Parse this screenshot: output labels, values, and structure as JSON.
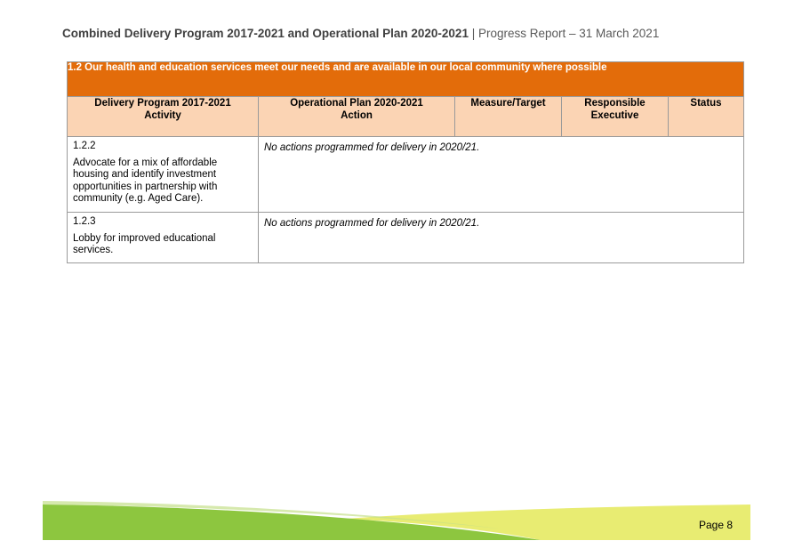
{
  "header": {
    "title_bold": "Combined Delivery Program 2017-2021 and Operational Plan 2020-2021",
    "separator": " | ",
    "subtitle": "Progress Report – 31 March 2021"
  },
  "table": {
    "section_heading": "1.2 Our health and education services meet our needs and are available in our local community where possible",
    "columns": {
      "activity_line1": "Delivery Program 2017-2021",
      "activity_line2": "Activity",
      "action_line1": "Operational Plan 2020-2021",
      "action_line2": "Action",
      "measure": "Measure/Target",
      "responsible_line1": "Responsible",
      "responsible_line2": "Executive",
      "status": "Status"
    },
    "rows": [
      {
        "code": "1.2.2",
        "activity": "Advocate for a mix of affordable housing and identify investment opportunities in partnership with community (e.g. Aged Care).",
        "action": "No actions programmed for delivery in 2020/21."
      },
      {
        "code": "1.2.3",
        "activity": "Lobby for improved educational services.",
        "action": "No actions programmed for delivery in 2020/21."
      }
    ],
    "colors": {
      "section_bg": "#e36c0a",
      "header_bg": "#fbd4b4"
    }
  },
  "footer": {
    "page_label": "Page 8",
    "colors": {
      "green": "#8dc63f",
      "yellow": "#e8ec72"
    }
  }
}
